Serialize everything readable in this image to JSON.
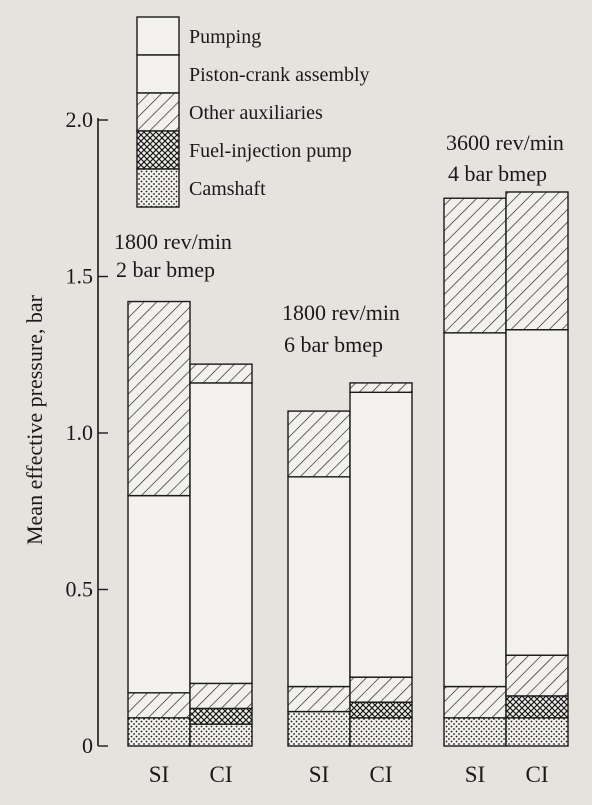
{
  "chart_data": {
    "type": "bar",
    "stacked": true,
    "ylabel": "Mean effective pressure, bar",
    "ylim": [
      0,
      2.0
    ],
    "yticks": [
      {
        "value": 0,
        "label": "0"
      },
      {
        "value": 0.5,
        "label": "0.5"
      },
      {
        "value": 1.0,
        "label": "1.0"
      },
      {
        "value": 1.5,
        "label": "1.5"
      },
      {
        "value": 2.0,
        "label": "2.0"
      }
    ],
    "legend": {
      "placement": "top-left",
      "entries": [
        {
          "name": "Pumping",
          "pattern": "blank"
        },
        {
          "name": "Piston-crank assembly",
          "pattern": "blank"
        },
        {
          "name": "Other auxiliaries",
          "pattern": "hatch"
        },
        {
          "name": "Fuel-injection pump",
          "pattern": "crosshatch"
        },
        {
          "name": "Camshaft",
          "pattern": "dots"
        }
      ]
    },
    "groups": [
      {
        "condition": [
          "1800 rev/min",
          "2 bar bmep"
        ],
        "bars": [
          {
            "category": "SI",
            "segments": {
              "Camshaft": 0.09,
              "Fuel-injection pump": 0.0,
              "Other auxiliaries": 0.08,
              "Piston-crank assembly": 0.63,
              "Pumping": 0.62
            }
          },
          {
            "category": "CI",
            "segments": {
              "Camshaft": 0.07,
              "Fuel-injection pump": 0.05,
              "Other auxiliaries": 0.08,
              "Piston-crank assembly": 0.96,
              "Pumping": 0.06
            }
          }
        ]
      },
      {
        "condition": [
          "1800 rev/min",
          "6 bar bmep"
        ],
        "bars": [
          {
            "category": "SI",
            "segments": {
              "Camshaft": 0.11,
              "Fuel-injection pump": 0.0,
              "Other auxiliaries": 0.08,
              "Piston-crank assembly": 0.67,
              "Pumping": 0.21
            }
          },
          {
            "category": "CI",
            "segments": {
              "Camshaft": 0.09,
              "Fuel-injection pump": 0.05,
              "Other auxiliaries": 0.08,
              "Piston-crank assembly": 0.91,
              "Pumping": 0.03
            }
          }
        ]
      },
      {
        "condition": [
          "3600 rev/min",
          "4 bar bmep"
        ],
        "bars": [
          {
            "category": "SI",
            "segments": {
              "Camshaft": 0.09,
              "Fuel-injection pump": 0.0,
              "Other auxiliaries": 0.1,
              "Piston-crank assembly": 1.13,
              "Pumping": 0.43
            }
          },
          {
            "category": "CI",
            "segments": {
              "Camshaft": 0.09,
              "Fuel-injection pump": 0.07,
              "Other auxiliaries": 0.13,
              "Piston-crank assembly": 1.04,
              "Pumping": 0.44
            }
          }
        ]
      }
    ]
  }
}
